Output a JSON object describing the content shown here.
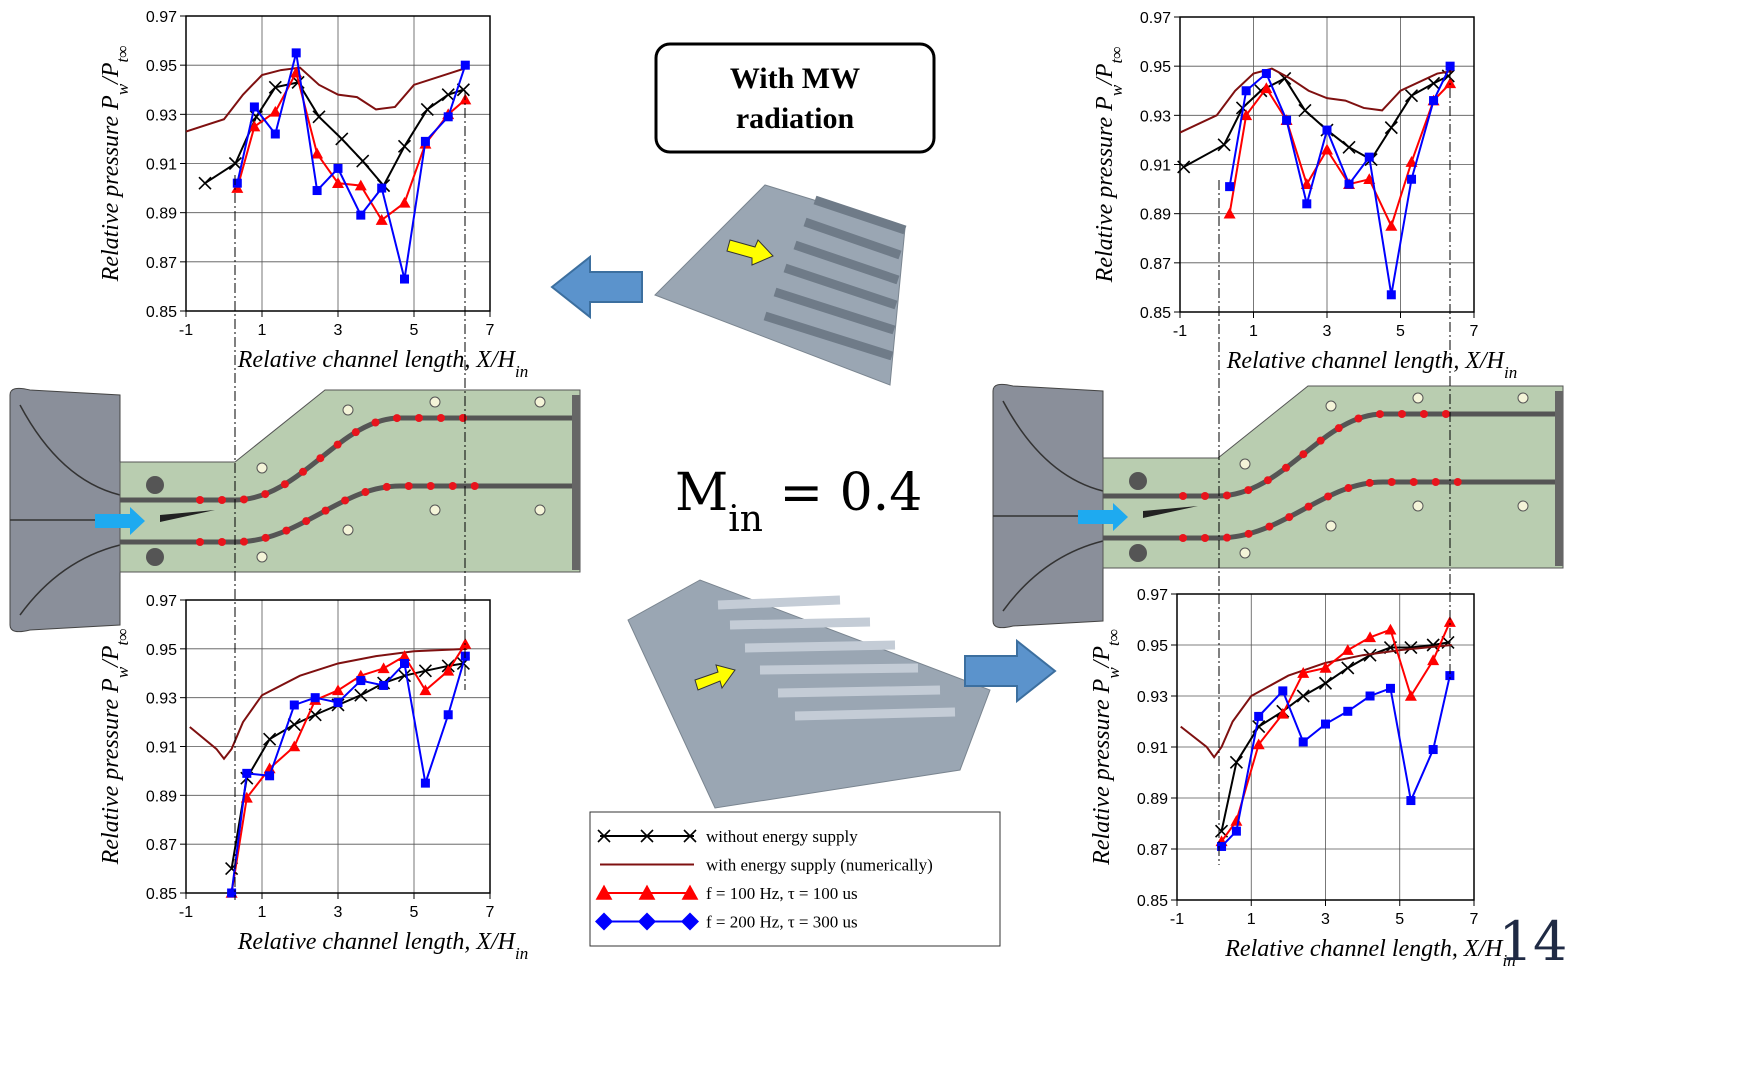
{
  "chart_data": [
    {
      "type": "line",
      "xlabel": [
        "Relative channel length, X/H",
        "in"
      ],
      "ylabel": [
        "Relative pressure P",
        "w",
        "/P",
        "t∞"
      ],
      "xlim": [
        -1,
        7
      ],
      "ylim": [
        0.85,
        0.97
      ],
      "xticks": [
        -1,
        1,
        3,
        5,
        7
      ],
      "yticks": [
        0.85,
        0.87,
        0.89,
        0.91,
        0.93,
        0.95,
        0.97
      ],
      "grid": true,
      "series": [
        {
          "name": "without energy supply",
          "color": "#000000",
          "marker": "x",
          "x": [
            -0.5,
            0.3,
            0.85,
            1.35,
            1.95,
            2.5,
            3.1,
            3.65,
            4.2,
            4.75,
            5.35,
            5.9,
            6.3
          ],
          "values": [
            0.902,
            0.91,
            0.929,
            0.941,
            0.943,
            0.929,
            0.92,
            0.911,
            0.901,
            0.917,
            0.932,
            0.938,
            0.94
          ]
        },
        {
          "name": "with energy supply (numerically)",
          "color": "#7f1010",
          "marker": "none",
          "x": [
            -1,
            0,
            0.5,
            1,
            1.5,
            2,
            2.5,
            3,
            3.5,
            4,
            4.5,
            5,
            6,
            6.4
          ],
          "values": [
            0.923,
            0.928,
            0.938,
            0.946,
            0.948,
            0.949,
            0.942,
            0.938,
            0.937,
            0.932,
            0.933,
            0.942,
            0.947,
            0.949
          ]
        },
        {
          "name": "f = 100 Hz, τ = 100 us",
          "color": "#ff0000",
          "marker": "triangle",
          "x": [
            0.35,
            0.8,
            1.35,
            1.9,
            2.45,
            3.0,
            3.6,
            4.15,
            4.75,
            5.3,
            5.9,
            6.35
          ],
          "values": [
            0.9,
            0.925,
            0.931,
            0.947,
            0.914,
            0.902,
            0.901,
            0.887,
            0.894,
            0.918,
            0.93,
            0.936
          ]
        },
        {
          "name": "f = 200 Hz, τ = 300 us",
          "color": "#0000ff",
          "marker": "square",
          "x": [
            0.35,
            0.8,
            1.35,
            1.9,
            2.45,
            3.0,
            3.6,
            4.15,
            4.75,
            5.3,
            5.9,
            6.35
          ],
          "values": [
            0.902,
            0.933,
            0.922,
            0.955,
            0.899,
            0.908,
            0.889,
            0.9,
            0.863,
            0.919,
            0.929,
            0.95
          ]
        }
      ]
    },
    {
      "type": "line",
      "xlabel": [
        "Relative channel length, X/H",
        "in"
      ],
      "ylabel": [
        "Relative pressure P",
        "w",
        "/P",
        "t∞"
      ],
      "xlim": [
        -1,
        7
      ],
      "ylim": [
        0.85,
        0.97
      ],
      "xticks": [
        -1,
        1,
        3,
        5,
        7
      ],
      "yticks": [
        0.85,
        0.87,
        0.89,
        0.91,
        0.93,
        0.95,
        0.97
      ],
      "grid": true,
      "series": [
        {
          "color": "#000000",
          "marker": "x",
          "x": [
            -0.9,
            0.2,
            0.7,
            1.2,
            1.85,
            2.4,
            3.0,
            3.6,
            4.2,
            4.75,
            5.3,
            5.9,
            6.3
          ],
          "values": [
            0.909,
            0.918,
            0.933,
            0.94,
            0.945,
            0.932,
            0.924,
            0.917,
            0.912,
            0.925,
            0.938,
            0.943,
            0.946
          ]
        },
        {
          "color": "#7f1010",
          "marker": "none",
          "x": [
            -1,
            0,
            0.5,
            1,
            1.5,
            2,
            2.5,
            3,
            3.5,
            4,
            4.5,
            5,
            6,
            6.4
          ],
          "values": [
            0.923,
            0.93,
            0.94,
            0.947,
            0.949,
            0.945,
            0.94,
            0.937,
            0.936,
            0.933,
            0.932,
            0.94,
            0.947,
            0.948
          ]
        },
        {
          "color": "#ff0000",
          "marker": "triangle",
          "x": [
            0.35,
            0.8,
            1.35,
            1.9,
            2.45,
            3.0,
            3.6,
            4.15,
            4.75,
            5.3,
            5.9,
            6.35
          ],
          "values": [
            0.89,
            0.93,
            0.941,
            0.928,
            0.902,
            0.916,
            0.902,
            0.904,
            0.885,
            0.911,
            0.936,
            0.943
          ]
        },
        {
          "color": "#0000ff",
          "marker": "square",
          "x": [
            0.35,
            0.8,
            1.35,
            1.9,
            2.45,
            3.0,
            3.6,
            4.15,
            4.75,
            5.3,
            5.9,
            6.35
          ],
          "values": [
            0.901,
            0.94,
            0.947,
            0.928,
            0.894,
            0.924,
            0.902,
            0.913,
            0.857,
            0.904,
            0.936,
            0.95
          ]
        }
      ]
    },
    {
      "type": "line",
      "xlabel": [
        "Relative channel length, X/H",
        "in"
      ],
      "ylabel": [
        "Relative pressure P",
        "w",
        "/P",
        "t∞"
      ],
      "xlim": [
        -1,
        7
      ],
      "ylim": [
        0.85,
        0.97
      ],
      "xticks": [
        -1,
        1,
        3,
        5,
        7
      ],
      "yticks": [
        0.85,
        0.87,
        0.89,
        0.91,
        0.93,
        0.95,
        0.97
      ],
      "grid": true,
      "series": [
        {
          "color": "#000000",
          "marker": "x",
          "x": [
            0.2,
            0.6,
            1.2,
            1.85,
            2.4,
            3.0,
            3.6,
            4.2,
            4.75,
            5.3,
            5.9,
            6.3
          ],
          "values": [
            0.86,
            0.897,
            0.913,
            0.919,
            0.923,
            0.927,
            0.931,
            0.936,
            0.939,
            0.941,
            0.943,
            0.944
          ]
        },
        {
          "color": "#7f1010",
          "marker": "none",
          "x": [
            -0.9,
            -0.2,
            0,
            0.2,
            0.5,
            1,
            2,
            3,
            4,
            5,
            6.4
          ],
          "values": [
            0.918,
            0.909,
            0.905,
            0.909,
            0.92,
            0.931,
            0.939,
            0.944,
            0.947,
            0.949,
            0.95
          ]
        },
        {
          "color": "#ff0000",
          "marker": "triangle",
          "x": [
            0.2,
            0.6,
            1.2,
            1.85,
            2.4,
            3.0,
            3.6,
            4.2,
            4.75,
            5.3,
            5.9,
            6.35
          ],
          "values": [
            0.85,
            0.889,
            0.901,
            0.91,
            0.929,
            0.933,
            0.939,
            0.942,
            0.947,
            0.933,
            0.941,
            0.952
          ]
        },
        {
          "color": "#0000ff",
          "marker": "square",
          "x": [
            0.2,
            0.6,
            1.2,
            1.85,
            2.4,
            3.0,
            3.6,
            4.2,
            4.75,
            5.3,
            5.9,
            6.35
          ],
          "values": [
            0.85,
            0.899,
            0.898,
            0.927,
            0.93,
            0.928,
            0.937,
            0.935,
            0.944,
            0.895,
            0.923,
            0.947
          ]
        }
      ]
    },
    {
      "type": "line",
      "xlabel": [
        "Relative channel length, X/H",
        "in"
      ],
      "ylabel": [
        "Relative pressure P",
        "w",
        "/P",
        "t∞"
      ],
      "xlim": [
        -1,
        7
      ],
      "ylim": [
        0.85,
        0.97
      ],
      "xticks": [
        -1,
        1,
        3,
        5,
        7
      ],
      "yticks": [
        0.85,
        0.87,
        0.89,
        0.91,
        0.93,
        0.95,
        0.97
      ],
      "grid": true,
      "series": [
        {
          "color": "#000000",
          "marker": "x",
          "x": [
            0.2,
            0.6,
            1.2,
            1.85,
            2.4,
            3.0,
            3.6,
            4.2,
            4.75,
            5.3,
            5.9,
            6.3
          ],
          "values": [
            0.877,
            0.904,
            0.918,
            0.924,
            0.93,
            0.935,
            0.941,
            0.946,
            0.949,
            0.949,
            0.95,
            0.951
          ]
        },
        {
          "color": "#7f1010",
          "marker": "none",
          "x": [
            -0.9,
            -0.2,
            0,
            0.2,
            0.5,
            1,
            2,
            3,
            4,
            5,
            6.4
          ],
          "values": [
            0.918,
            0.91,
            0.906,
            0.91,
            0.92,
            0.93,
            0.938,
            0.943,
            0.946,
            0.948,
            0.95
          ]
        },
        {
          "color": "#ff0000",
          "marker": "triangle",
          "x": [
            0.2,
            0.6,
            1.2,
            1.85,
            2.4,
            3.0,
            3.6,
            4.2,
            4.75,
            5.3,
            5.9,
            6.35
          ],
          "values": [
            0.873,
            0.881,
            0.911,
            0.923,
            0.939,
            0.941,
            0.948,
            0.953,
            0.956,
            0.93,
            0.944,
            0.959
          ]
        },
        {
          "color": "#0000ff",
          "marker": "square",
          "x": [
            0.2,
            0.6,
            1.2,
            1.85,
            2.4,
            3.0,
            3.6,
            4.2,
            4.75,
            5.3,
            5.9,
            6.35
          ],
          "values": [
            0.871,
            0.877,
            0.922,
            0.932,
            0.912,
            0.919,
            0.924,
            0.93,
            0.933,
            0.889,
            0.909,
            0.938
          ]
        }
      ]
    }
  ],
  "box_text": [
    "With MW",
    "radiation"
  ],
  "mach": [
    "M",
    "in",
    " = 0.4"
  ],
  "page_number": "14"
}
